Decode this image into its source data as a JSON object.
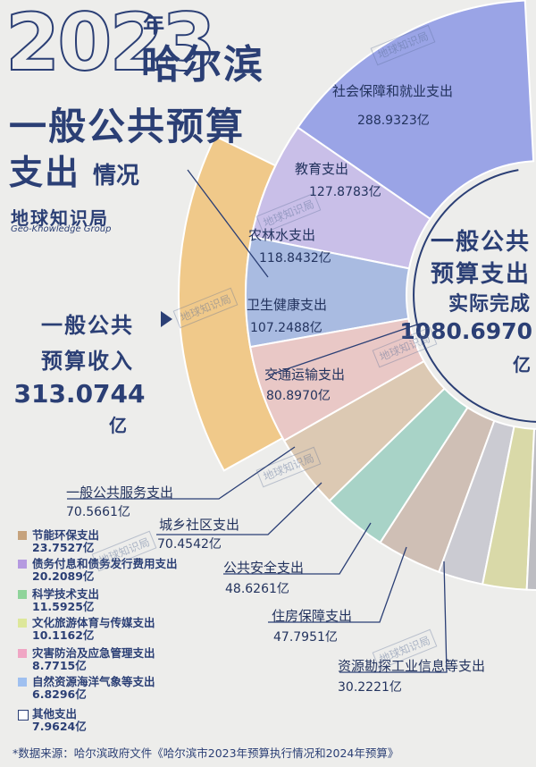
{
  "header": {
    "year": "2023",
    "year_suffix": "年",
    "city": "哈尔滨",
    "title_line1": "一般公共预算",
    "title_line2a": "支出",
    "title_line2b": "情况",
    "brand": "地球知识局",
    "brand_en": "Geo-Knowledge Group"
  },
  "income": {
    "line1": "一般公共",
    "line2": "预算收入",
    "value": "313.0744",
    "unit": "亿"
  },
  "expenditure_total": {
    "line1": "一般公共",
    "line2": "预算支出",
    "line3": "实际完成",
    "value": "1080.6970",
    "unit": "亿"
  },
  "watermark": "地球知识局",
  "source": "*数据来源：哈尔滨政府文件《哈尔滨市2023年预算执行情况和2024年预算》",
  "colors": {
    "income": "#f0c98a",
    "social": "#9aa4e6",
    "education": "#c9bfe8",
    "agri": "#a9bbe1",
    "health": "#e9c8c6",
    "transport": "#dcc9b3",
    "general": "#a8d3c7",
    "urban": "#cfbfb5",
    "safety": "#cbcbd2",
    "housing": "#d9d9a8",
    "resources": "#bdbdc2",
    "energy": "#c6a37d",
    "debt": "#b59ae0",
    "science": "#8fd49a",
    "culture": "#dde79a",
    "disaster": "#f0a6c4",
    "nature": "#9fc0f0",
    "other": "#f3f3f3",
    "text": "#2b3f75"
  },
  "chart_data": {
    "type": "pie",
    "title": "2023年哈尔滨一般公共预算支出情况",
    "unit": "亿",
    "income": 313.0744,
    "total": 1080.697,
    "series": [
      {
        "name": "社会保障和就业支出",
        "value": 288.9323,
        "label": "288.9323亿"
      },
      {
        "name": "教育支出",
        "value": 127.8783,
        "label": "127.8783亿"
      },
      {
        "name": "农林水支出",
        "value": 118.8432,
        "label": "118.8432亿"
      },
      {
        "name": "卫生健康支出",
        "value": 107.2488,
        "label": "107.2488亿"
      },
      {
        "name": "交通运输支出",
        "value": 80.897,
        "label": "80.8970亿"
      },
      {
        "name": "一般公共服务支出",
        "value": 70.5661,
        "label": "70.5661亿"
      },
      {
        "name": "城乡社区支出",
        "value": 70.4542,
        "label": "70.4542亿"
      },
      {
        "name": "公共安全支出",
        "value": 48.6261,
        "label": "48.6261亿"
      },
      {
        "name": "住房保障支出",
        "value": 47.7951,
        "label": "47.7951亿"
      },
      {
        "name": "资源勘探工业信息等支出",
        "value": 30.2221,
        "label": "30.2221亿"
      },
      {
        "name": "节能环保支出",
        "value": 23.7527,
        "label": "23.7527亿"
      },
      {
        "name": "债务付息和债务发行费用支出",
        "value": 20.2089,
        "label": "20.2089亿"
      },
      {
        "name": "科学技术支出",
        "value": 11.5925,
        "label": "11.5925亿"
      },
      {
        "name": "文化旅游体育与传媒支出",
        "value": 10.1162,
        "label": "10.1162亿"
      },
      {
        "name": "灾害防治及应急管理支出",
        "value": 8.7715,
        "label": "8.7715亿"
      },
      {
        "name": "自然资源海洋气象等支出",
        "value": 6.8296,
        "label": "6.8296亿"
      },
      {
        "name": "其他支出",
        "value": 7.9624,
        "label": "7.9624亿"
      }
    ]
  }
}
